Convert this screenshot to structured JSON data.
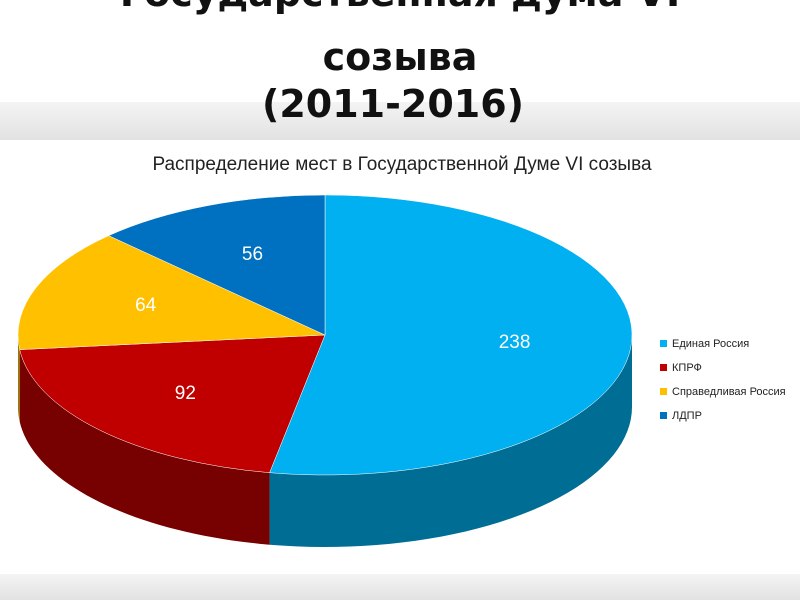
{
  "slide_title": [
    "Государственная дума VI",
    "созыва",
    "(2011-2016)"
  ],
  "chart_data": {
    "type": "pie",
    "title": "Распределение мест в Государственной Думе VI созыва",
    "categories": [
      "Единая Россия",
      "КПРФ",
      "Справедливая Россия",
      "ЛДПР"
    ],
    "values": [
      238,
      92,
      64,
      56
    ],
    "colors": [
      "#00b0f0",
      "#c00000",
      "#ffc000",
      "#0070c0"
    ],
    "legend": "right"
  }
}
